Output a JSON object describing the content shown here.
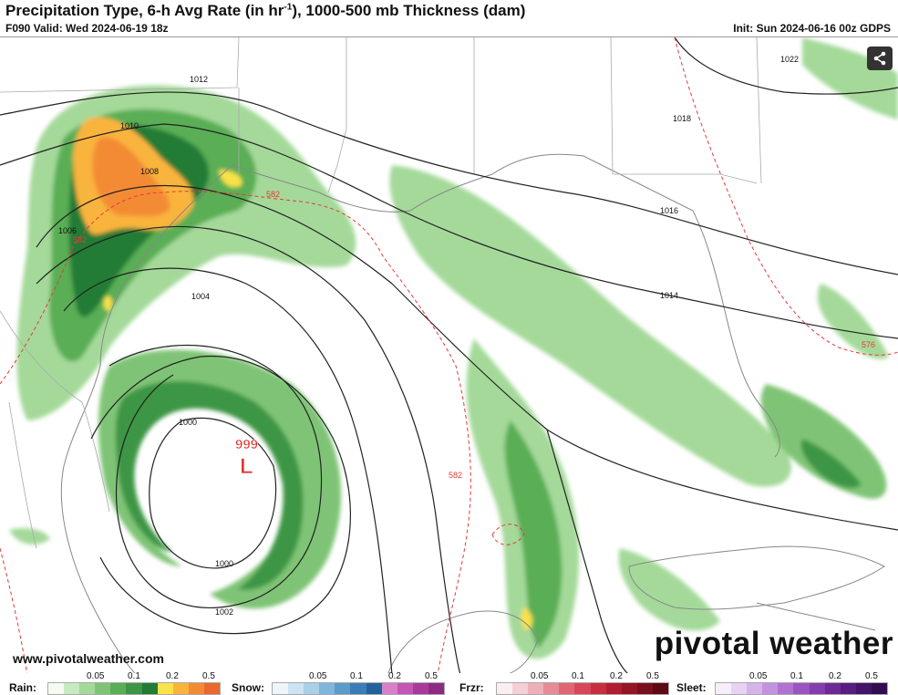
{
  "header": {
    "title_main": "Precipitation Type, 6-h Avg Rate (in hr",
    "title_sup": "-1",
    "title_end": "), 1000-500 mb Thickness (dam)",
    "valid": "F090 Valid: Wed 2024-06-19 18z",
    "init": "Init: Sun 2024-06-16 00z GDPS"
  },
  "map": {
    "isobar_labels": [
      "1012",
      "1010",
      "1008",
      "1006",
      "1004",
      "1000",
      "1000",
      "1002",
      "1018",
      "1016",
      "1014",
      "1022"
    ],
    "thickness_labels": [
      "582",
      "582",
      "582",
      "576"
    ],
    "low": {
      "pressure": "999",
      "symbol": "L"
    }
  },
  "footer": {
    "url": "www.pivotalweather.com",
    "brand": "pivotal weather"
  },
  "legend": [
    {
      "name": "Rain:",
      "ticks": [
        "0.05",
        "0.1",
        "0.2",
        "0.5"
      ],
      "colors": [
        "#f5fbf3",
        "#c8eac0",
        "#a4d99a",
        "#7fc476",
        "#5aae55",
        "#3c9644",
        "#217c35",
        "#f9e24a",
        "#f9b43c",
        "#f38b34",
        "#e86a2c"
      ]
    },
    {
      "name": "Snow:",
      "ticks": [
        "0.05",
        "0.1",
        "0.2",
        "0.5"
      ],
      "colors": [
        "#eef5fb",
        "#cde3f3",
        "#a9cfe9",
        "#80b6dc",
        "#5b9bcb",
        "#3b7eb7",
        "#22629b",
        "#d880c8",
        "#c456b4",
        "#a93a9c",
        "#8c2b84"
      ]
    },
    {
      "name": "Frzr:",
      "ticks": [
        "0.05",
        "0.1",
        "0.2",
        "0.5"
      ],
      "colors": [
        "#fbeef0",
        "#f5cfd6",
        "#efafb9",
        "#e88b97",
        "#e06676",
        "#d84658",
        "#c92e3f",
        "#b21e2f",
        "#951525",
        "#7a0f1e",
        "#5e0914"
      ]
    },
    {
      "name": "Sleet:",
      "ticks": [
        "0.05",
        "0.1",
        "0.2",
        "0.5"
      ],
      "colors": [
        "#f6eefb",
        "#e7d2f3",
        "#d6b4ea",
        "#c493df",
        "#b073d2",
        "#9b55c2",
        "#843dae",
        "#6d2a97",
        "#571e7f",
        "#431468",
        "#320c52"
      ]
    }
  ],
  "colors": {
    "isobar": "#222222",
    "thickness": "#e83a3a",
    "low": "#e03030",
    "border": "#aaaaaa"
  }
}
